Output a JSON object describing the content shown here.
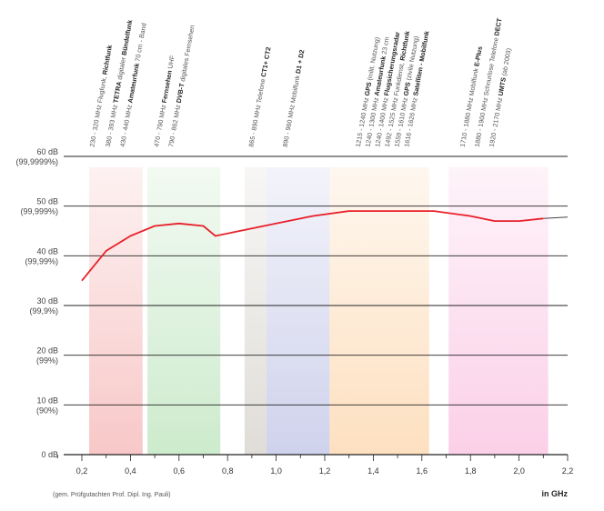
{
  "chart_data": {
    "type": "line",
    "xlabel": "in GHz",
    "footnote": "(gem. Prüfgutachten Prof. Dipl. Ing. Pauli)",
    "xlim": [
      0.0,
      2.2
    ],
    "ylim": [
      0,
      60
    ],
    "x_ticks": [
      "0,2",
      "0,4",
      "0,6",
      "0,8",
      "1,0",
      "1,2",
      "1,4",
      "1,6",
      "1,8",
      "2,0",
      "2,2"
    ],
    "x_tick_values": [
      0.2,
      0.4,
      0.6,
      0.8,
      1.0,
      1.2,
      1.4,
      1.6,
      1.8,
      2.0,
      2.2
    ],
    "y_ticks": [
      {
        "value": 60,
        "label": "60 dB",
        "sub": "(99,9999%)"
      },
      {
        "value": 50,
        "label": "50 dB",
        "sub": "(99,999%)"
      },
      {
        "value": 40,
        "label": "40 dB",
        "sub": "(99,99%)"
      },
      {
        "value": 30,
        "label": "30 dB",
        "sub": "(99,9%)"
      },
      {
        "value": 20,
        "label": "20 dB",
        "sub": "(99%)"
      },
      {
        "value": 10,
        "label": "10 dB",
        "sub": "(90%)"
      },
      {
        "value": 0,
        "label": "0 dB",
        "sub": ""
      }
    ],
    "grid": true,
    "series": [
      {
        "color": "#e8202a",
        "x": [
          0.2,
          0.3,
          0.4,
          0.5,
          0.6,
          0.7,
          0.75,
          0.85,
          1.0,
          1.15,
          1.3,
          1.5,
          1.65,
          1.8,
          1.9,
          2.0,
          2.1
        ],
        "y": [
          35,
          41,
          44,
          46,
          46.5,
          46,
          44,
          45,
          46.5,
          48,
          49,
          49,
          49,
          48,
          47,
          47,
          47.5
        ]
      },
      {
        "color": "#444444",
        "x": [
          2.1,
          2.2
        ],
        "y": [
          47.5,
          47.8
        ]
      }
    ],
    "bands": [
      {
        "from": 0.23,
        "to": 0.45,
        "color": "#f8c8c8"
      },
      {
        "from": 0.47,
        "to": 0.77,
        "color": "#cdebcd"
      },
      {
        "from": 0.87,
        "to": 0.96,
        "color": "#e0ddd8"
      },
      {
        "from": 0.96,
        "to": 1.22,
        "color": "#cfd2ec"
      },
      {
        "from": 1.22,
        "to": 1.63,
        "color": "#fde0c0"
      },
      {
        "from": 1.71,
        "to": 2.12,
        "color": "#fbd0e8"
      }
    ],
    "band_labels": [
      {
        "x": 0.235,
        "lines": [
          [
            "230 - 320 MHz Flugfunk, ",
            ""
          ],
          [
            "",
            "Richtfunk"
          ]
        ]
      },
      {
        "x": 0.3,
        "lines": [
          [
            "380 - 393 MHz ",
            ""
          ],
          [
            "",
            "TETRA"
          ],
          [
            " digitaler ",
            ""
          ],
          [
            "",
            "Bündelfunk"
          ]
        ]
      },
      {
        "x": 0.36,
        "lines": [
          [
            "430 - 440 MHz ",
            ""
          ],
          [
            "",
            "Amateurfunk"
          ],
          [
            " 70 cm - Band",
            ""
          ]
        ]
      },
      {
        "x": 0.5,
        "lines": [
          [
            "470 - 790 MHz ",
            ""
          ],
          [
            "",
            "Fernsehen"
          ],
          [
            " UHF",
            ""
          ]
        ]
      },
      {
        "x": 0.56,
        "lines": [
          [
            "790 - 862 MHz ",
            ""
          ],
          [
            "",
            "DVB-T"
          ],
          [
            " digitales Fernsehen",
            ""
          ]
        ]
      },
      {
        "x": 0.89,
        "lines": [
          [
            "865 - 890 MHz Telefone ",
            ""
          ],
          [
            "",
            "CT1+ CT2"
          ]
        ]
      },
      {
        "x": 1.03,
        "lines": [
          [
            "890 - 960 MHz Mobilfunk ",
            ""
          ],
          [
            "",
            "D1 + D2"
          ]
        ]
      },
      {
        "x": 1.33,
        "lines": [
          [
            "1215 - 1240 MHz ",
            ""
          ],
          [
            "",
            "GPS"
          ],
          [
            " (milit. Nutzung)",
            ""
          ]
        ]
      },
      {
        "x": 1.37,
        "lines": [
          [
            "1240 - 1300 MHz ",
            ""
          ],
          [
            "",
            "Amateurfunk"
          ],
          [
            " 23 cm",
            ""
          ]
        ]
      },
      {
        "x": 1.41,
        "lines": [
          [
            "1240 - 1400 MHz ",
            ""
          ],
          [
            "",
            "Flugsicherungsradar"
          ]
        ]
      },
      {
        "x": 1.45,
        "lines": [
          [
            "1492 - 1525 MHz Funkdienst, ",
            ""
          ],
          [
            "",
            "Richtfunk"
          ]
        ]
      },
      {
        "x": 1.49,
        "lines": [
          [
            "1559 - 1610 MHz ",
            ""
          ],
          [
            "",
            "GPS"
          ],
          [
            " (zivile Nutzung)",
            ""
          ]
        ]
      },
      {
        "x": 1.53,
        "lines": [
          [
            "1616 - 1626 MHz ",
            ""
          ],
          [
            "",
            "Satelliten - Mobilfunk"
          ]
        ]
      },
      {
        "x": 1.76,
        "lines": [
          [
            "1710 - 1880 MHz Mobilfunk ",
            ""
          ],
          [
            "",
            "E-Plus"
          ]
        ]
      },
      {
        "x": 1.82,
        "lines": [
          [
            "1880 - 1900 MHz Schnurlose Telefone ",
            ""
          ],
          [
            "",
            "DECT"
          ]
        ]
      },
      {
        "x": 1.88,
        "lines": [
          [
            "1920 - 2170 MHz ",
            ""
          ],
          [
            "",
            "UMTS"
          ],
          [
            " (ab 2003)",
            ""
          ]
        ]
      }
    ]
  }
}
